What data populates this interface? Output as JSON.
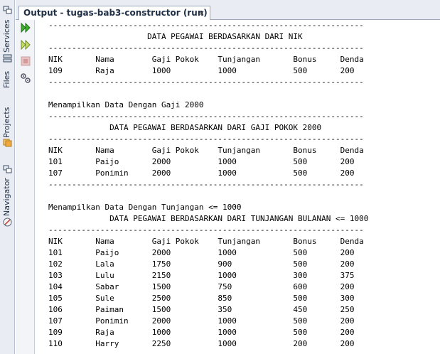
{
  "sidebar": {
    "tabs": [
      {
        "label": "Services",
        "icon": "services-icon"
      },
      {
        "label": "Files",
        "icon": "files-icon"
      },
      {
        "label": "Projects",
        "icon": "projects-icon"
      },
      {
        "label": "Navigator",
        "icon": "navigator-icon"
      }
    ]
  },
  "output_tab": {
    "title": "Output - tugas-bab3-constructor (run)",
    "close_glyph": "×"
  },
  "toolbar": {
    "buttons": [
      "rerun-icon",
      "rerun-with-args-icon",
      "stop-icon",
      "settings-icon"
    ]
  },
  "console": {
    "lines": [
      "-------------------------------------------------------------------",
      "                     DATA PEGAWAI BERDASARKAN DARI NIK",
      "-------------------------------------------------------------------",
      "NIK       Nama        Gaji Pokok    Tunjangan       Bonus     Denda",
      "109       Raja        1000          1000            500       200",
      "-------------------------------------------------------------------",
      "",
      "Menampilkan Data Dengan Gaji 2000",
      "-------------------------------------------------------------------",
      "             DATA PEGAWAI BERDASARKAN DARI GAJI POKOK 2000",
      "-------------------------------------------------------------------",
      "NIK       Nama        Gaji Pokok    Tunjangan       Bonus     Denda",
      "101       Paijo       2000          1000            500       200",
      "107       Ponimin     2000          1000            500       200",
      "-------------------------------------------------------------------",
      "",
      "Menampilkan Data Dengan Tunjangan <= 1000",
      "             DATA PEGAWAI BERDASARKAN DARI TUNJANGAN BULANAN <= 1000",
      "-------------------------------------------------------------------",
      "NIK       Nama        Gaji Pokok    Tunjangan       Bonus     Denda",
      "101       Paijo       2000          1000            500       200",
      "102       Lala        1750          900             500       200",
      "103       Lulu        2150          1000            300       375",
      "104       Sabar       1500          750             600       200",
      "105       Sule        2500          850             500       300",
      "106       Paiman      1500          350             450       250",
      "107       Ponimin     2000          1000            500       200",
      "109       Raja        1000          1000            500       200",
      "110       Harry       2250          1000            200       200"
    ]
  }
}
